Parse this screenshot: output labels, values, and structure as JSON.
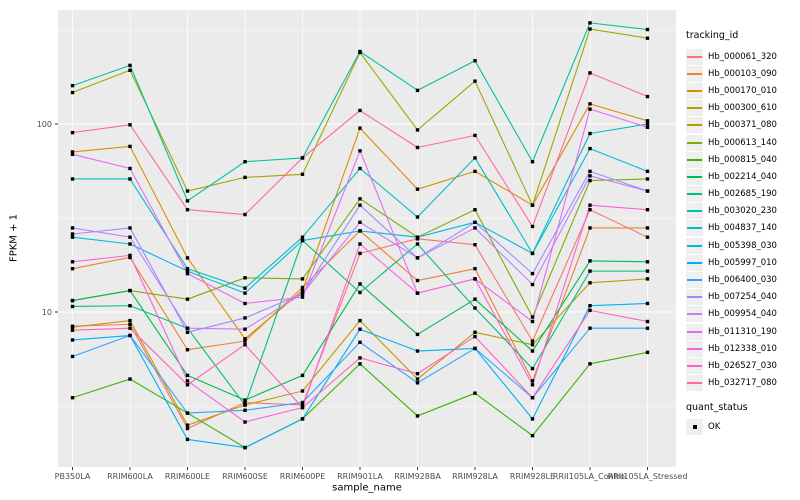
{
  "chart_data": {
    "type": "line",
    "title": "",
    "xlabel": "sample_name",
    "ylabel": "FPKM + 1",
    "y_scale": "log10",
    "ylim": [
      1.6,
      410
    ],
    "grid": true,
    "panel_bg": "#EBEBEB",
    "gridline_color": "#FFFFFF",
    "tick_color": "#333333",
    "tick_label_color": "#4D4D4D",
    "y_major_ticks": [
      {
        "label": "100",
        "value": 100
      },
      {
        "label": "10",
        "value": 10
      }
    ],
    "y_minor_gridlines": [
      316,
      31.6,
      3.16
    ],
    "marker": {
      "shape": "filled-square",
      "color": "#000000"
    },
    "legend": {
      "series_title": "tracking_id",
      "status_title": "quant_status",
      "status_label": "OK",
      "position": "right"
    },
    "categories": [
      "PB350LA",
      "RRIM600LA",
      "RRIM600LE",
      "RRIM600SE",
      "RRIM600PE",
      "RRIM901LA",
      "RRIM928BA",
      "RRIM928LA",
      "RRIM928LE",
      "RRII105LA_Control",
      "RRII105LA_Stressed"
    ],
    "series": [
      {
        "name": "Hb_000061_320",
        "color": "#F8766D",
        "values": [
          8.4,
          8.6,
          2.4,
          3.3,
          3.2,
          20.5,
          24.5,
          22.8,
          7.0,
          35,
          25
        ]
      },
      {
        "name": "Hb_000103_090",
        "color": "#EA8331",
        "values": [
          17,
          19.5,
          6.3,
          7.0,
          13.5,
          27,
          14.7,
          17,
          4.3,
          28,
          28
        ]
      },
      {
        "name": "Hb_000170_010",
        "color": "#D89000",
        "values": [
          71,
          76,
          19.4,
          7.2,
          13,
          95,
          45,
          56,
          37,
          128,
          104
        ]
      },
      {
        "name": "Hb_000300_610",
        "color": "#C09B00",
        "values": [
          8.3,
          9.0,
          2.5,
          3.2,
          3.8,
          9.0,
          4.4,
          7.8,
          6.7,
          14.3,
          15
        ]
      },
      {
        "name": "Hb_000371_080",
        "color": "#A3A500",
        "values": [
          147,
          193,
          44,
          52,
          54,
          240,
          93,
          169,
          37,
          320,
          286
        ]
      },
      {
        "name": "Hb_000613_140",
        "color": "#7CAE00",
        "values": [
          11.5,
          13,
          11.7,
          15.2,
          15,
          40,
          25,
          35,
          9.4,
          50,
          51
        ]
      },
      {
        "name": "Hb_000815_040",
        "color": "#39B600",
        "values": [
          3.5,
          4.4,
          2.9,
          1.9,
          2.7,
          5.3,
          2.8,
          3.7,
          2.2,
          5.3,
          6.1
        ]
      },
      {
        "name": "Hb_002214_040",
        "color": "#00BB4E",
        "values": [
          11.5,
          13,
          4.6,
          3.4,
          4.6,
          14.1,
          7.6,
          11.7,
          6.2,
          18.7,
          18.5
        ]
      },
      {
        "name": "Hb_002685_190",
        "color": "#00BF7D",
        "values": [
          10.7,
          10.8,
          8.2,
          3.2,
          24,
          12.7,
          23,
          10.5,
          5.0,
          16.5,
          16.5
        ]
      },
      {
        "name": "Hb_003020_230",
        "color": "#00C1A3",
        "values": [
          160,
          205,
          39,
          63,
          66,
          243,
          151,
          217,
          63,
          345,
          318
        ]
      },
      {
        "name": "Hb_004837_140",
        "color": "#00BFC4",
        "values": [
          51,
          51,
          17,
          13.4,
          25,
          58,
          32,
          66,
          20.5,
          89,
          100
        ]
      },
      {
        "name": "Hb_005398_030",
        "color": "#00BAE0",
        "values": [
          25,
          23,
          16.5,
          12.6,
          24,
          27,
          25,
          30,
          20.5,
          74,
          56
        ]
      },
      {
        "name": "Hb_005997_010",
        "color": "#00B0F6",
        "values": [
          7.1,
          7.5,
          2.1,
          1.9,
          2.7,
          8.1,
          6.2,
          6.4,
          2.7,
          10.8,
          11.1
        ]
      },
      {
        "name": "Hb_006400_030",
        "color": "#35A2FF",
        "values": [
          5.8,
          7.5,
          2.9,
          3.0,
          3.3,
          6.9,
          4.2,
          6.4,
          3.5,
          8.2,
          8.2
        ]
      },
      {
        "name": "Hb_007254_040",
        "color": "#9590FF",
        "values": [
          26,
          28,
          7.8,
          9.3,
          12.5,
          37,
          19.4,
          30,
          16,
          56,
          44
        ]
      },
      {
        "name": "Hb_009954_040",
        "color": "#C77CFF",
        "values": [
          28,
          25,
          8.2,
          8.1,
          12.5,
          30,
          19.4,
          28,
          14,
          53,
          44
        ]
      },
      {
        "name": "Hb_011310_190",
        "color": "#E76BF3",
        "values": [
          69,
          58,
          16,
          11.1,
          12,
          72,
          12.6,
          15,
          8.9,
          120,
          96
        ]
      },
      {
        "name": "Hb_012338_010",
        "color": "#FA62DB",
        "values": [
          18.5,
          20,
          4.3,
          2.6,
          3.1,
          23,
          12.6,
          15,
          4.1,
          37,
          35
        ]
      },
      {
        "name": "Hb_026527_030",
        "color": "#FF62BC",
        "values": [
          8.0,
          8.2,
          4.1,
          6.7,
          3.1,
          5.7,
          4.7,
          7.4,
          3.5,
          10.2,
          8.9
        ]
      },
      {
        "name": "Hb_032717_080",
        "color": "#FF6A98",
        "values": [
          90,
          99,
          35,
          33,
          66,
          118,
          75,
          87,
          28.5,
          187,
          140
        ]
      }
    ]
  }
}
